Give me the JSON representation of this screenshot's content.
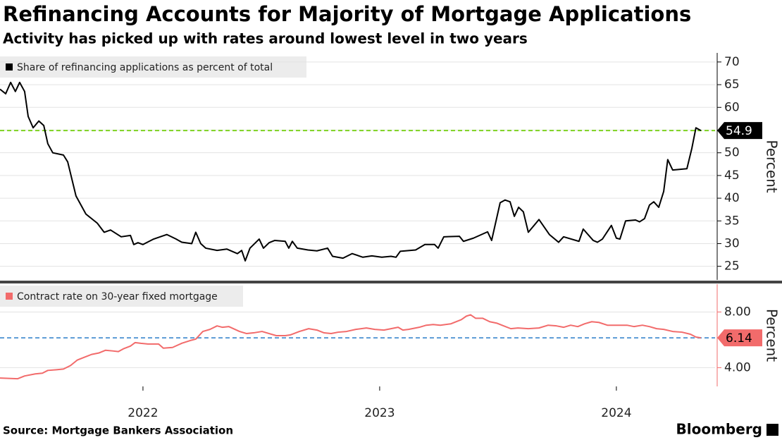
{
  "title": "Refinancing Accounts for Majority of Mortgage Applications",
  "subtitle": "Activity has picked up with rates around lowest level in two years",
  "source": "Source: Mortgage Bankers Association",
  "brand": "Bloomberg",
  "chart_data": [
    {
      "type": "line",
      "ylabel": "Percent",
      "grid": true,
      "xlim": [
        2021.396,
        2024.417
      ],
      "ylim": [
        22,
        72
      ],
      "yticks": [
        25,
        30,
        35,
        40,
        45,
        50,
        55,
        60,
        65,
        70
      ],
      "highlight": 54.9,
      "highlight_color": "#7ed321",
      "highlight_box_color": "#000000",
      "series": [
        {
          "name": "Share of refinancing applications as percent of total",
          "color": "#000000",
          "x": [
            2021.396,
            2021.42,
            2021.441,
            2021.461,
            2021.479,
            2021.5,
            2021.515,
            2021.536,
            2021.56,
            2021.581,
            2021.598,
            2021.619,
            2021.664,
            2021.682,
            2021.717,
            2021.759,
            2021.807,
            2021.836,
            2021.863,
            2021.908,
            2021.947,
            2021.961,
            2021.979,
            2022.0,
            2022.045,
            2022.101,
            2022.14,
            2022.164,
            2022.206,
            2022.223,
            2022.244,
            2022.265,
            2022.313,
            2022.354,
            2022.399,
            2022.417,
            2022.432,
            2022.452,
            2022.491,
            2022.509,
            2022.533,
            2022.557,
            2022.601,
            2022.616,
            2022.631,
            2022.652,
            2022.697,
            2022.735,
            2022.78,
            2022.801,
            2022.845,
            2022.884,
            2022.929,
            2022.967,
            2023.009,
            2023.048,
            2023.069,
            2023.087,
            2023.152,
            2023.191,
            2023.232,
            2023.247,
            2023.271,
            2023.337,
            2023.354,
            2023.396,
            2023.456,
            2023.473,
            2023.509,
            2023.53,
            2023.551,
            2023.569,
            2023.587,
            2023.607,
            2023.628,
            2023.673,
            2023.717,
            2023.756,
            2023.777,
            2023.842,
            2023.86,
            2023.902,
            2023.92,
            2023.941,
            2023.979,
            2024.0,
            2024.015,
            2024.039,
            2024.081,
            2024.098,
            2024.119,
            2024.14,
            2024.158,
            2024.179,
            2024.2,
            2024.217,
            2024.238,
            2024.298,
            2024.319,
            2024.336,
            2024.357
          ],
          "values": [
            64,
            63,
            65.5,
            63.5,
            65.5,
            63.5,
            58,
            55.5,
            57,
            56,
            52,
            50,
            49.5,
            48,
            40.5,
            36.5,
            34.5,
            32.5,
            33,
            31.5,
            31.8,
            29.8,
            30.2,
            29.8,
            31,
            32,
            31,
            30.3,
            30,
            32.5,
            30,
            29,
            28.5,
            28.8,
            27.8,
            28.5,
            26.2,
            29,
            31,
            29,
            30.2,
            30.7,
            30.5,
            29,
            30.5,
            29,
            28.6,
            28.4,
            29,
            27.2,
            26.8,
            27.8,
            27,
            27.3,
            27,
            27.2,
            27,
            28.3,
            28.6,
            29.8,
            29.8,
            29,
            31.5,
            31.6,
            30.5,
            31.2,
            32.6,
            30.7,
            39,
            39.6,
            39.2,
            36,
            38,
            37,
            32.5,
            35.3,
            32,
            30.3,
            31.5,
            30.5,
            33.2,
            30.7,
            30.3,
            31,
            34,
            31.2,
            31,
            35,
            35.2,
            34.8,
            35.5,
            38.5,
            39.2,
            38,
            41.5,
            48.5,
            46.2,
            46.5,
            51,
            55.5,
            54.9
          ]
        }
      ]
    },
    {
      "type": "line",
      "ylabel": "Percent",
      "grid": true,
      "xlim": [
        2021.396,
        2024.417
      ],
      "ylim": [
        2.65,
        10
      ],
      "yticks": [
        {
          "value": 4,
          "label": "4.00"
        },
        {
          "value": 8,
          "label": "8.00"
        }
      ],
      "xticks": [
        2022,
        2023,
        2024
      ],
      "highlight": 6.14,
      "highlight_color": "#5b9bd5",
      "highlight_box_color": "#f26b6b",
      "series": [
        {
          "name": "Contract rate on 30-year fixed mortgage",
          "color": "#f26b6b",
          "x": [
            2021.396,
            2021.47,
            2021.5,
            2021.545,
            2021.575,
            2021.598,
            2021.634,
            2021.664,
            2021.694,
            2021.723,
            2021.753,
            2021.783,
            2021.813,
            2021.842,
            2021.872,
            2021.896,
            2021.917,
            2021.947,
            2021.967,
            2021.991,
            2022.021,
            2022.066,
            2022.086,
            2022.125,
            2022.164,
            2022.2,
            2022.223,
            2022.253,
            2022.283,
            2022.313,
            2022.336,
            2022.363,
            2022.408,
            2022.438,
            2022.467,
            2022.503,
            2022.533,
            2022.563,
            2022.601,
            2022.622,
            2022.661,
            2022.7,
            2022.735,
            2022.765,
            2022.795,
            2022.825,
            2022.86,
            2022.899,
            2022.944,
            2022.979,
            2023.018,
            2023.048,
            2023.078,
            2023.098,
            2023.122,
            2023.167,
            2023.197,
            2023.226,
            2023.256,
            2023.301,
            2023.345,
            2023.366,
            2023.384,
            2023.405,
            2023.435,
            2023.465,
            2023.494,
            2023.524,
            2023.554,
            2023.584,
            2023.628,
            2023.673,
            2023.712,
            2023.747,
            2023.777,
            2023.807,
            2023.837,
            2023.866,
            2023.896,
            2023.926,
            2023.962,
            2024.0,
            2024.045,
            2024.075,
            2024.11,
            2024.14,
            2024.17,
            2024.2,
            2024.238,
            2024.277,
            2024.313,
            2024.336,
            2024.357
          ],
          "values": [
            3.25,
            3.2,
            3.4,
            3.55,
            3.6,
            3.8,
            3.85,
            3.9,
            4.15,
            4.55,
            4.75,
            4.95,
            5.05,
            5.25,
            5.2,
            5.15,
            5.35,
            5.55,
            5.8,
            5.75,
            5.7,
            5.7,
            5.4,
            5.45,
            5.75,
            5.95,
            6.05,
            6.6,
            6.75,
            7.0,
            6.9,
            6.95,
            6.6,
            6.45,
            6.5,
            6.6,
            6.45,
            6.3,
            6.3,
            6.35,
            6.6,
            6.8,
            6.7,
            6.5,
            6.45,
            6.55,
            6.6,
            6.75,
            6.85,
            6.75,
            6.7,
            6.8,
            6.9,
            6.7,
            6.75,
            6.9,
            7.05,
            7.1,
            7.05,
            7.15,
            7.45,
            7.7,
            7.8,
            7.55,
            7.55,
            7.3,
            7.2,
            7.0,
            6.8,
            6.85,
            6.8,
            6.85,
            7.05,
            7.0,
            6.9,
            7.05,
            6.95,
            7.15,
            7.3,
            7.25,
            7.05,
            7.05,
            7.05,
            6.95,
            7.05,
            6.95,
            6.8,
            6.75,
            6.6,
            6.55,
            6.4,
            6.2,
            6.14
          ]
        }
      ]
    }
  ]
}
